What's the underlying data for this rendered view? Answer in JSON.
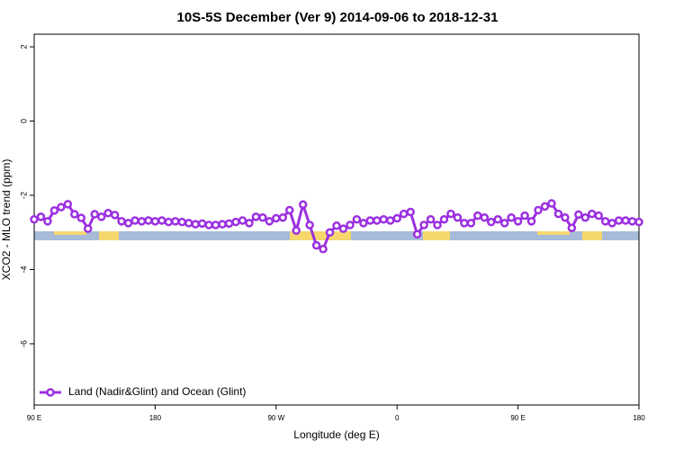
{
  "chart_data": {
    "type": "line",
    "title": "10S-5S December (Ver 9)   2014-09-06 to 2018-12-31",
    "xlabel": "Longitude (deg E)",
    "ylabel": "XCO2 - MLO trend (ppm)",
    "xlim": [
      90,
      540
    ],
    "xticks": [
      {
        "value": 90,
        "label": "90 E"
      },
      180,
      {
        "value": 270,
        "label": "90 W"
      },
      {
        "value": 360,
        "label": "0"
      },
      {
        "value": 450,
        "label": "90 E"
      },
      {
        "value": 540,
        "label": "180"
      }
    ],
    "ylim": [
      -7.65,
      2.34
    ],
    "yticks": [
      -6,
      -4,
      -2,
      0,
      2
    ],
    "legend": "bottom-left",
    "x": [
      90,
      95,
      100,
      105,
      110,
      115,
      120,
      125,
      130,
      135,
      140,
      145,
      150,
      155,
      160,
      165,
      170,
      175,
      180,
      185,
      190,
      195,
      200,
      205,
      210,
      215,
      220,
      225,
      230,
      235,
      240,
      245,
      250,
      255,
      260,
      265,
      270,
      275,
      280,
      285,
      290,
      295,
      300,
      305,
      310,
      315,
      320,
      325,
      330,
      335,
      340,
      345,
      350,
      355,
      360,
      365,
      370,
      375,
      380,
      385,
      390,
      395,
      400,
      405,
      410,
      415,
      420,
      425,
      430,
      435,
      440,
      445,
      450,
      455,
      460,
      465,
      470,
      475,
      480,
      485,
      490,
      495,
      500,
      505,
      510,
      515,
      520,
      525,
      530,
      535,
      540
    ],
    "series": [
      {
        "name": "Land (Nadir&Glint) and Ocean (Glint)",
        "color": "#9b30e0",
        "values": [
          -2.65,
          -2.58,
          -2.7,
          -2.41,
          -2.32,
          -2.24,
          -2.51,
          -2.61,
          -2.9,
          -2.51,
          -2.58,
          -2.48,
          -2.53,
          -2.7,
          -2.75,
          -2.68,
          -2.7,
          -2.68,
          -2.7,
          -2.68,
          -2.72,
          -2.7,
          -2.72,
          -2.75,
          -2.78,
          -2.76,
          -2.8,
          -2.8,
          -2.78,
          -2.76,
          -2.72,
          -2.68,
          -2.75,
          -2.58,
          -2.6,
          -2.7,
          -2.62,
          -2.6,
          -2.4,
          -2.95,
          -2.25,
          -2.8,
          -3.35,
          -3.45,
          -3.0,
          -2.82,
          -2.9,
          -2.8,
          -2.65,
          -2.75,
          -2.68,
          -2.68,
          -2.65,
          -2.68,
          -2.62,
          -2.5,
          -2.45,
          -3.05,
          -2.8,
          -2.65,
          -2.8,
          -2.65,
          -2.5,
          -2.6,
          -2.75,
          -2.75,
          -2.55,
          -2.6,
          -2.72,
          -2.65,
          -2.75,
          -2.6,
          -2.7,
          -2.55,
          -2.7,
          -2.4,
          -2.3,
          -2.22,
          -2.5,
          -2.6,
          -2.88,
          -2.52,
          -2.6,
          -2.5,
          -2.55,
          -2.7,
          -2.75,
          -2.68,
          -2.68,
          -2.7,
          -2.72
        ]
      }
    ]
  }
}
